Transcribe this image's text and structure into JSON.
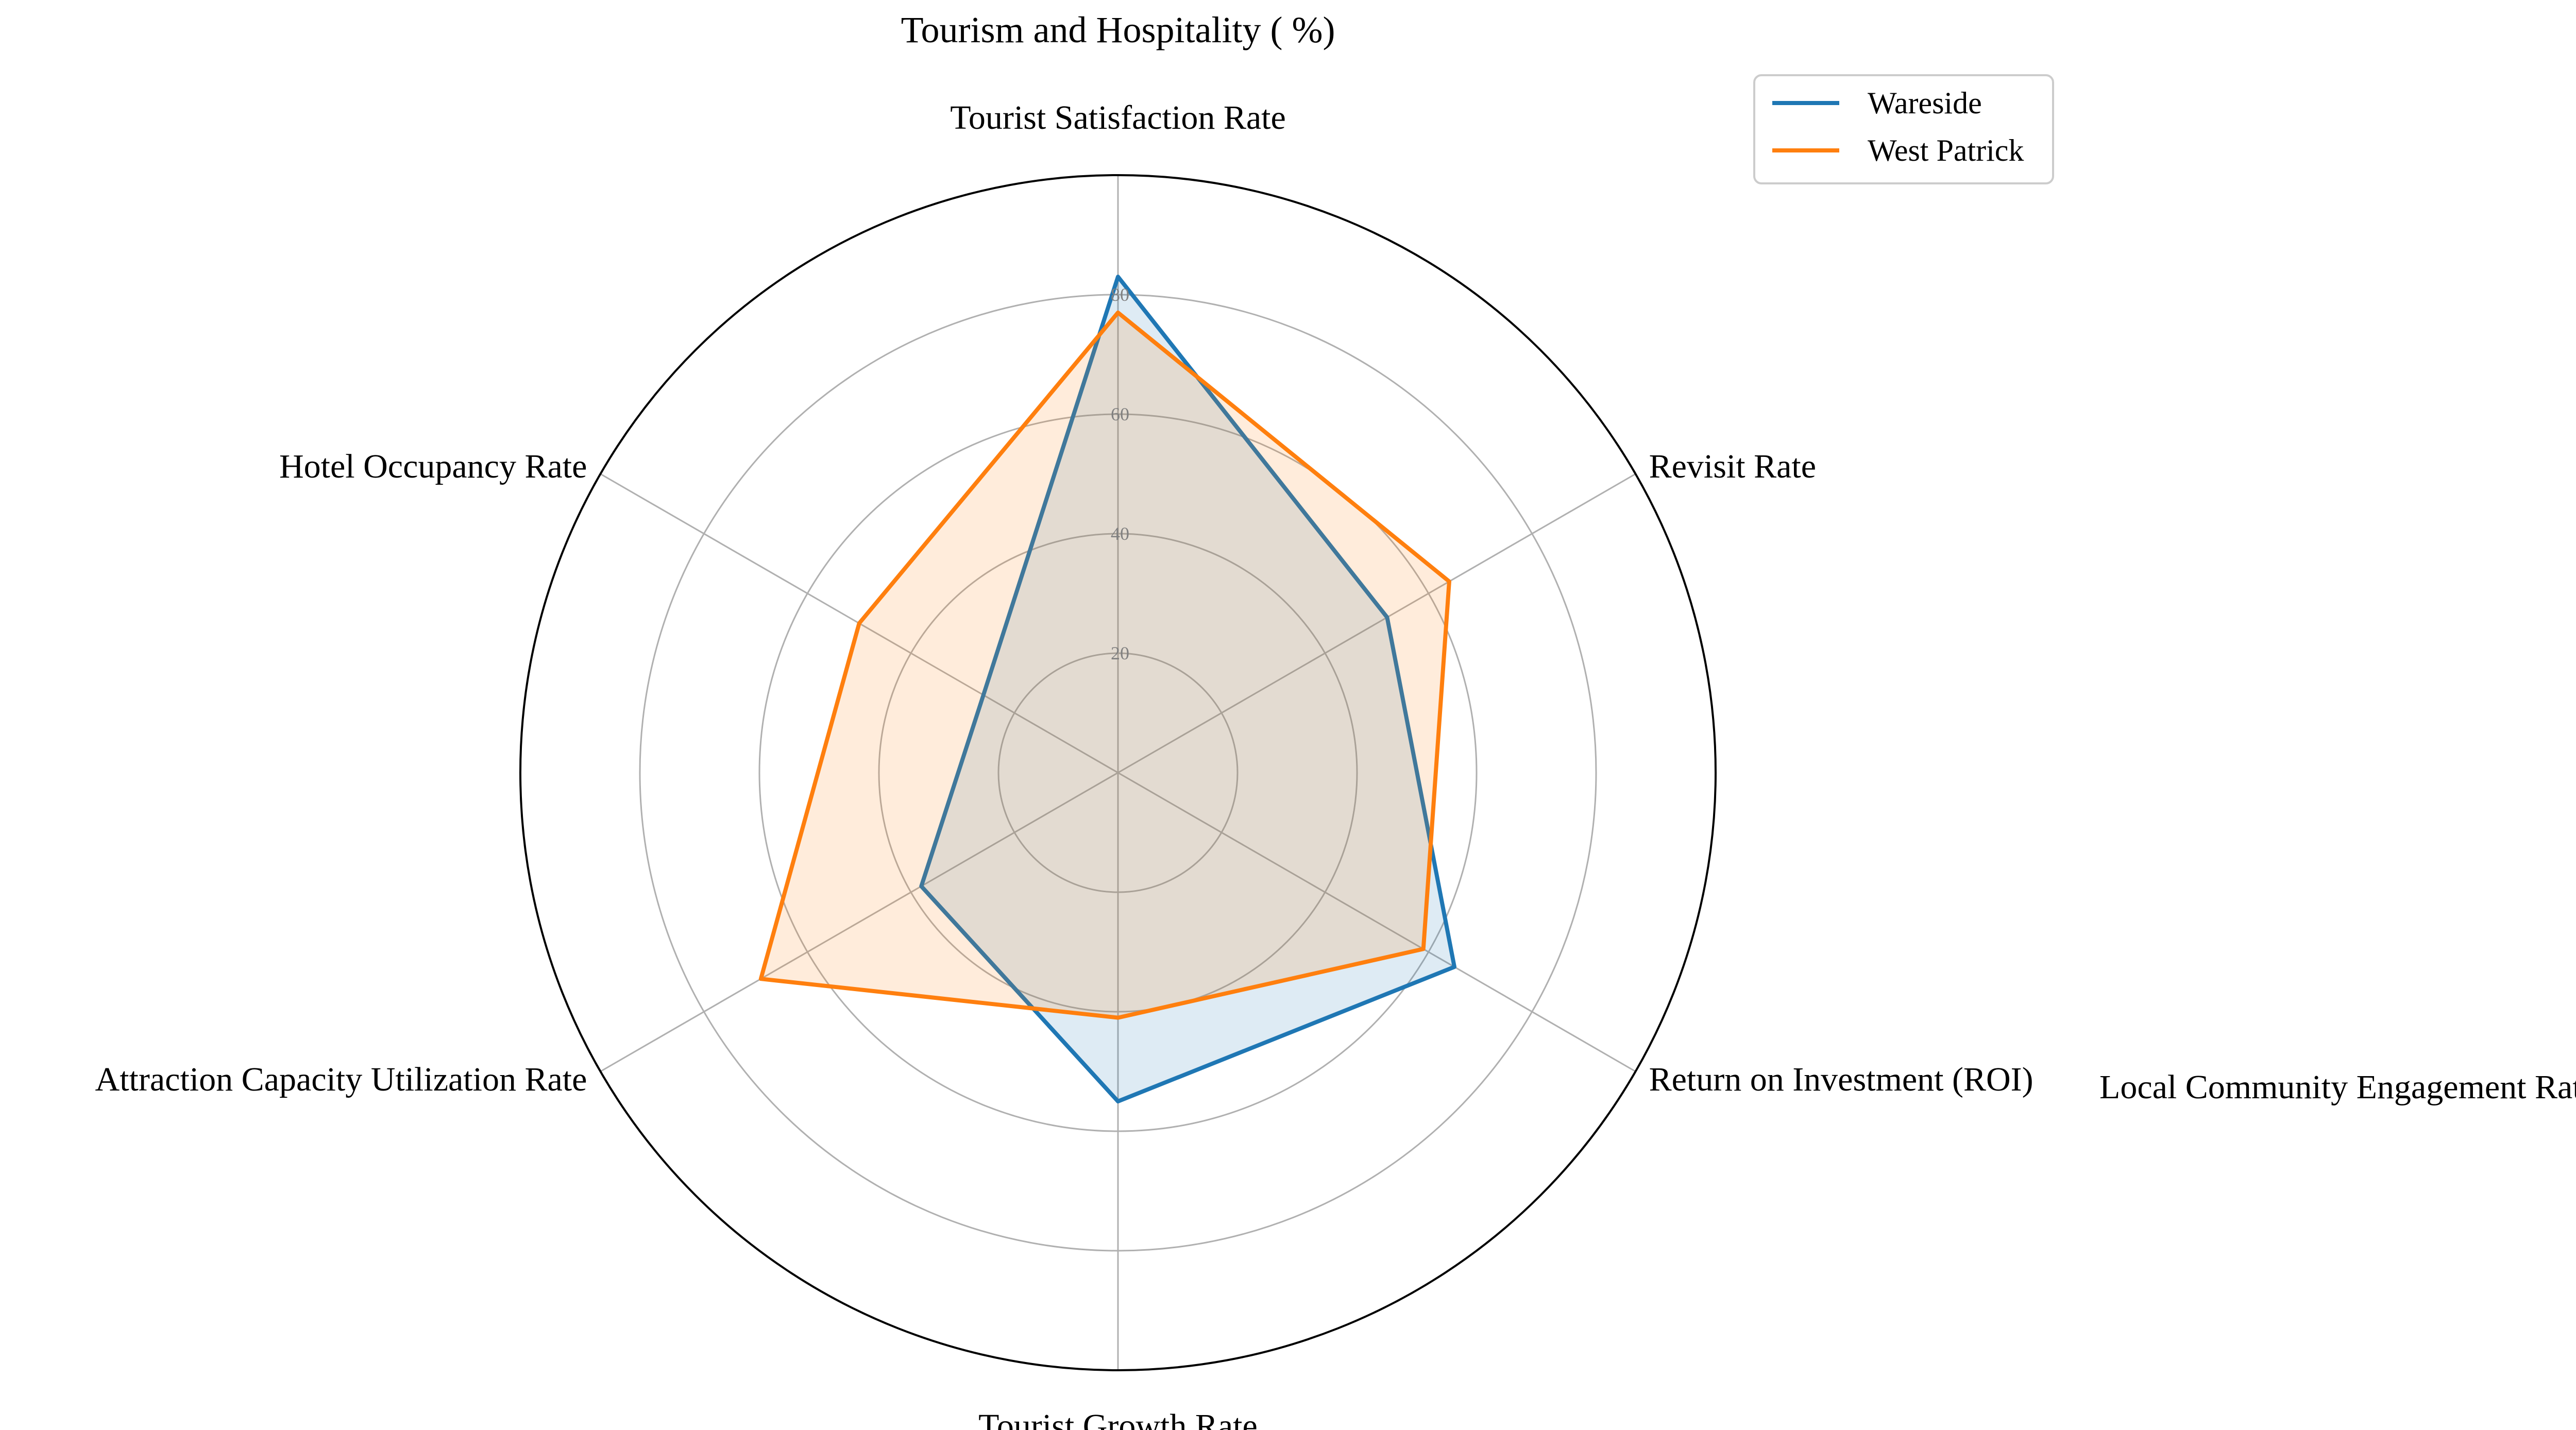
{
  "chart_data": {
    "type": "radar",
    "title": "Tourism and Hospitality ( %)",
    "axes": [
      "Tourist Satisfaction Rate",
      "Revisit Rate",
      "Return on Investment (ROI)",
      "Tourist Growth Rate",
      "Attraction Capacity Utilization Rate",
      "Hotel Occupancy Rate"
    ],
    "extra_label": "Local Community Engagement Rate",
    "radial_ticks": [
      20,
      40,
      60,
      80
    ],
    "rlim": [
      0,
      100
    ],
    "grid": true,
    "legend_position": "top-right",
    "series": [
      {
        "name": "Wareside",
        "color": "#1f77b4",
        "values": [
          83,
          52,
          65,
          55,
          38,
          26
        ]
      },
      {
        "name": "West Patrick",
        "color": "#ff7f0e",
        "values": [
          77,
          64,
          59,
          41,
          69,
          50
        ]
      }
    ]
  }
}
